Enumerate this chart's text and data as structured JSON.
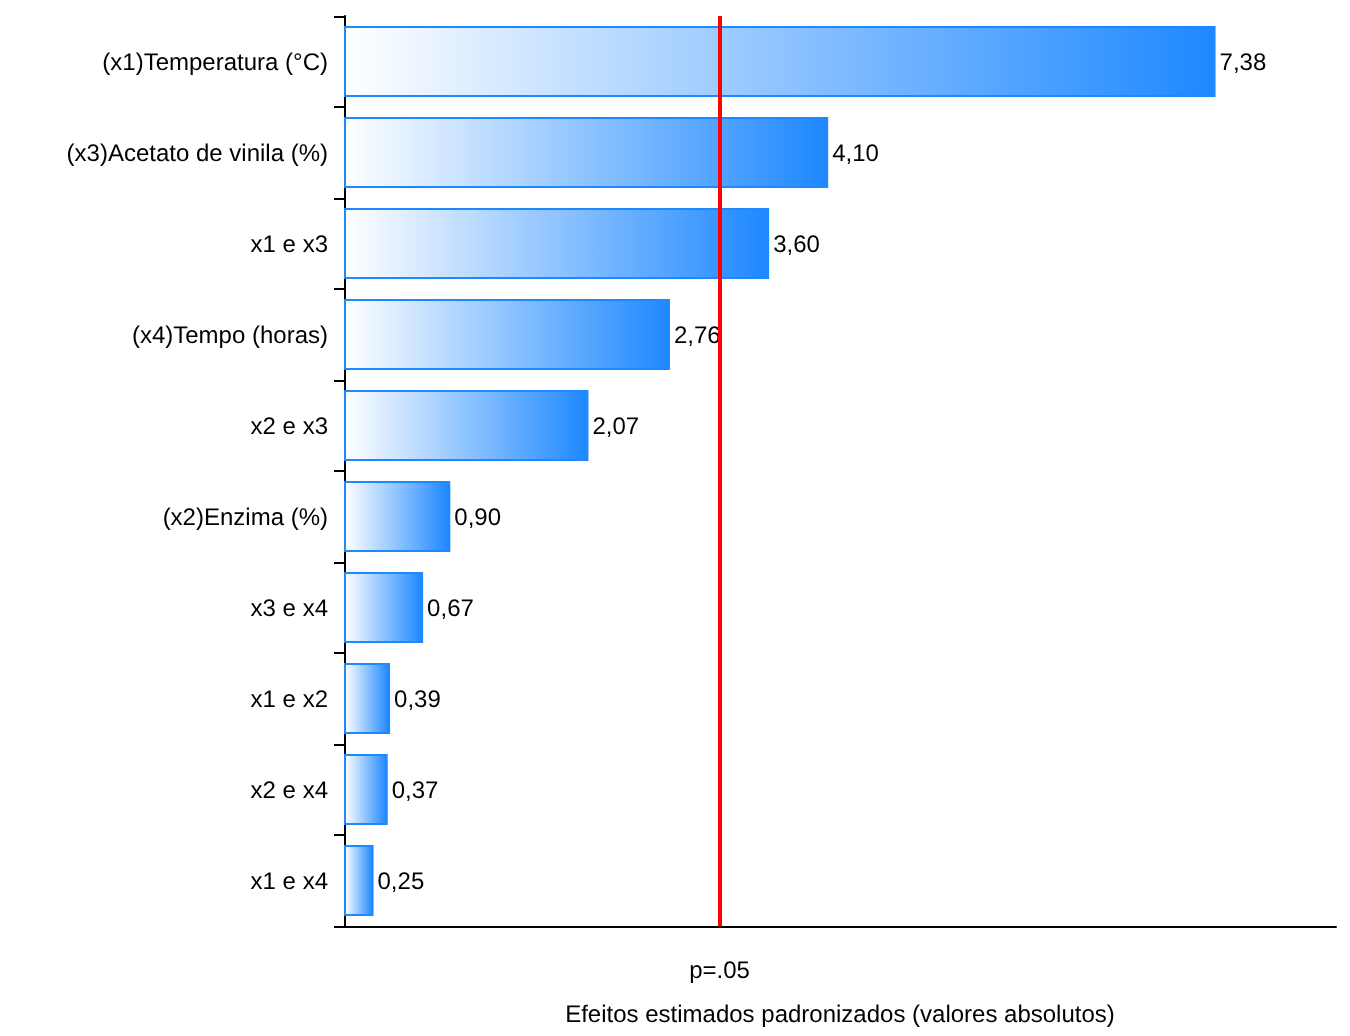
{
  "chart_data": {
    "type": "bar",
    "orientation": "horizontal",
    "xlabel": "Efeitos estimados padronizados (valores absolutos)",
    "categories": [
      "(x1)Temperatura (°C)",
      "(x3)Acetato de vinila (%)",
      "x1 e x3",
      "(x4)Tempo (horas)",
      "x2 e x3",
      "(x2)Enzima (%)",
      "x3 e x4",
      "x1 e x2",
      "x2 e x4",
      "x1 e x4"
    ],
    "values": [
      7.38,
      4.1,
      3.6,
      2.76,
      2.07,
      0.9,
      0.67,
      0.39,
      0.37,
      0.25
    ],
    "value_labels": [
      "7,38",
      "4,10",
      "3,60",
      "2,76",
      "2,07",
      "0,90",
      "0,67",
      "0,39",
      "0,37",
      "0,25"
    ],
    "color": "#1e88ff",
    "xlim": [
      0,
      8.4
    ],
    "tick_labels": "y",
    "grid": false,
    "ref_lines": [
      {
        "axis": "x",
        "value": 3.18,
        "label": "p=.05",
        "color": "#ff0000"
      }
    ]
  }
}
